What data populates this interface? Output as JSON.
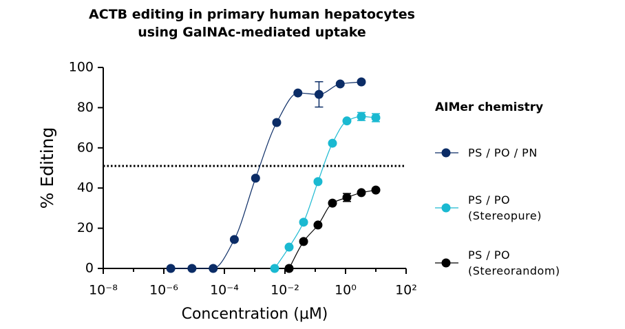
{
  "chart_data": {
    "type": "scatter",
    "title": "ACTB editing in primary human hepatocytes\nusing GalNAc-mediated uptake",
    "xlabel": "Concentration (µM)",
    "ylabel": "% Editing",
    "xscale": "log",
    "xlim": [
      1e-08,
      100
    ],
    "xticks": [
      {
        "value": 1e-08,
        "label": "10⁻⁸"
      },
      {
        "value": 1e-06,
        "label": "10⁻⁶"
      },
      {
        "value": 0.0001,
        "label": "10⁻⁴"
      },
      {
        "value": 0.01,
        "label": "10⁻²"
      },
      {
        "value": 1,
        "label": "10⁰"
      },
      {
        "value": 100,
        "label": "10²"
      }
    ],
    "ylim": [
      0,
      100
    ],
    "yticks": [
      0,
      20,
      40,
      60,
      80,
      100
    ],
    "reference_line": 51,
    "legend_title": "AIMer chemistry",
    "legend": "right",
    "series": [
      {
        "name": "PS / PO / PN",
        "color": "#0b2c66",
        "x": [
          1.7e-06,
          8.5e-06,
          4.27e-05,
          0.000213,
          0.00107,
          0.00533,
          0.0267,
          0.133,
          0.667,
          3.33
        ],
        "values": [
          0,
          0,
          0,
          14.4,
          44.9,
          72.6,
          87.3,
          86.6,
          91.8,
          92.8
        ],
        "errors": [
          null,
          null,
          null,
          null,
          null,
          null,
          null,
          6.3,
          null,
          null
        ]
      },
      {
        "name": "PS / PO (Stereopure)",
        "color": "#1ab9d1",
        "x": [
          0.00457,
          0.0137,
          0.0412,
          0.123,
          0.37,
          1.11,
          3.33,
          10
        ],
        "values": [
          0,
          10.6,
          23,
          43.2,
          62.3,
          73.4,
          75.6,
          75
        ],
        "errors": [
          null,
          null,
          null,
          null,
          null,
          null,
          2,
          2
        ]
      },
      {
        "name": "PS / PO (Stereorandom)",
        "color": "#000000",
        "x": [
          0.0137,
          0.0412,
          0.123,
          0.37,
          1.11,
          3.33,
          10
        ],
        "values": [
          0,
          13.4,
          21.6,
          32.5,
          35.3,
          37.7,
          39
        ],
        "errors": [
          null,
          null,
          null,
          null,
          2,
          null,
          null
        ]
      }
    ]
  }
}
